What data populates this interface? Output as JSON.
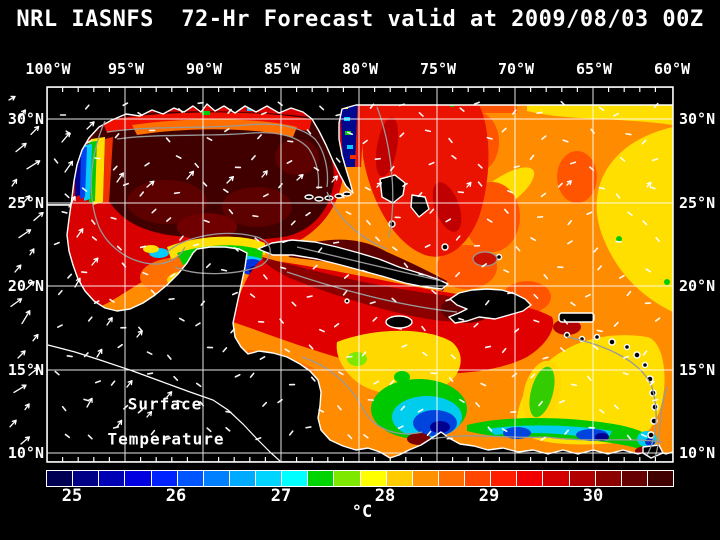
{
  "title": "NRL IASNFS  72-Hr Forecast valid at 2009/08/03 00Z",
  "axes": {
    "top": [
      "100°W",
      "95°W",
      "90°W",
      "85°W",
      "80°W",
      "75°W",
      "70°W",
      "65°W",
      "60°W"
    ],
    "left": [
      "30°N",
      "25°N",
      "20°N",
      "15°N",
      "10°N"
    ],
    "right": [
      "30°N",
      "25°N",
      "20°N",
      "15°N",
      "10°N"
    ]
  },
  "map_labels": {
    "line1": "Surface",
    "line2": "Temperature"
  },
  "colorbar": {
    "tick_labels": [
      "25",
      "26",
      "27",
      "28",
      "29",
      "30"
    ],
    "unit": "°C",
    "min_value": 24.75,
    "max_value": 30.75,
    "step": 0.25,
    "colors": [
      "#000052",
      "#000087",
      "#0000b4",
      "#0000e1",
      "#0022ff",
      "#0055ff",
      "#0080ff",
      "#00aaff",
      "#00d4ff",
      "#00ffff",
      "#00d400",
      "#7fe800",
      "#ffff00",
      "#ffcc00",
      "#ff9100",
      "#ff6d00",
      "#ff4700",
      "#ff1e00",
      "#f00000",
      "#d40000",
      "#b20000",
      "#8c0000",
      "#660000",
      "#400000"
    ]
  },
  "chart_data": {
    "type": "heatmap",
    "title": "NRL IASNFS  72-Hr Forecast valid at 2009/08/03 00Z",
    "field": "Surface Temperature",
    "unit": "°C",
    "lon_ticks_deg_west": [
      100,
      95,
      90,
      85,
      80,
      75,
      70,
      65,
      60
    ],
    "lat_ticks_deg_north": [
      30,
      25,
      20,
      15,
      10
    ],
    "colorbar_ticks": [
      25,
      26,
      27,
      28,
      29,
      30
    ],
    "colorbar_range": [
      24.75,
      30.75
    ],
    "legend_position": "bottom"
  },
  "colors": {
    "background": "#000000",
    "text": "#ffffff",
    "frame": "#ffffff",
    "grid": "#ffffff",
    "contour": "#999999",
    "land": "#000000",
    "coastline": "#ffffff"
  }
}
